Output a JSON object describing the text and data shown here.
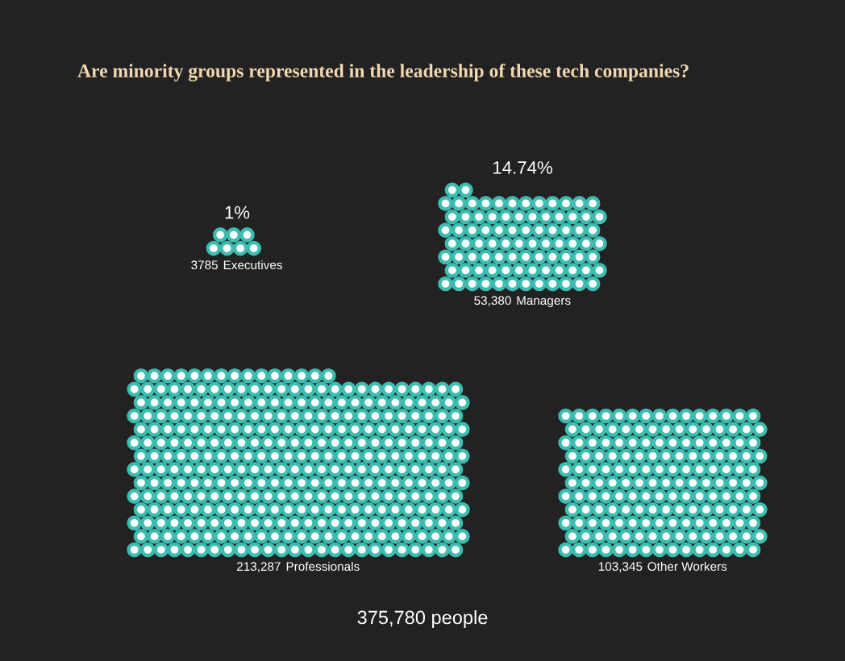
{
  "chart_data": {
    "type": "other",
    "title": "Are minority groups represented in the leadership of these tech companies?",
    "categories": [
      "Executives",
      "Managers",
      "Professionals",
      "Other Workers"
    ],
    "values": [
      3785,
      53380,
      213287,
      103345
    ],
    "value_labels": [
      "3785",
      "53,380",
      "213,287",
      "103,345"
    ],
    "color": "#3dbdb0",
    "annotations": [
      {
        "text": "1%",
        "x": "Executives"
      },
      {
        "text": "14.74%",
        "x": "Managers"
      },
      "375,780 people"
    ]
  }
}
